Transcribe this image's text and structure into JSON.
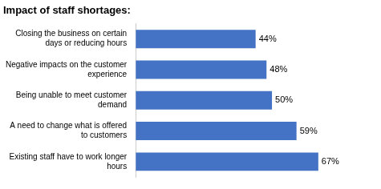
{
  "chart_data": {
    "type": "bar",
    "title": "Impact of staff shortages:",
    "categories": [
      "Closing the business on certain\ndays or reducing hours",
      "Negative impacts on the customer\nexperience",
      "Being unable to meet customer\ndemand",
      "A need to change what is offered\nto customers",
      "Existing staff have to work longer\nhours"
    ],
    "values": [
      44,
      48,
      50,
      59,
      67
    ],
    "value_labels": [
      "44%",
      "48%",
      "50%",
      "59%",
      "67%"
    ],
    "color": "#4472C4",
    "xlim": [
      0,
      80
    ],
    "orientation": "horizontal",
    "data_labels": true,
    "tick_labels": "y",
    "grid": false
  }
}
